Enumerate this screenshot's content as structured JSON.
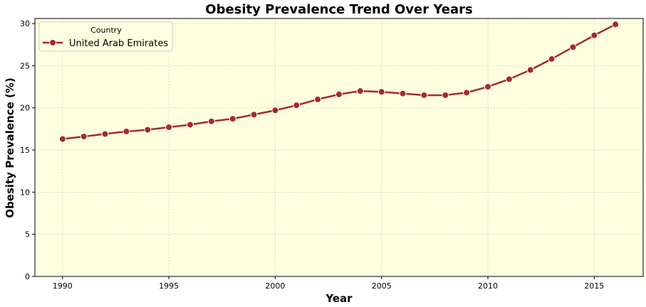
{
  "chart_data": {
    "type": "line",
    "title": "Obesity Prevalence Trend Over Years",
    "xlabel": "Year",
    "ylabel": "Obesity Prevalence (%)",
    "xlim": [
      1988.7,
      2017.3
    ],
    "ylim": [
      0,
      30.6
    ],
    "x_ticks": [
      1990,
      1995,
      2000,
      2005,
      2010,
      2015
    ],
    "y_ticks": [
      0,
      5,
      10,
      15,
      20,
      25,
      30
    ],
    "grid": true,
    "legend": {
      "title": "Country",
      "position": "top-left"
    },
    "colors": {
      "background": "#ffffe0",
      "line": "#a52a2a",
      "grid": "#cccccc"
    },
    "series": [
      {
        "name": "United Arab Emirates",
        "x": [
          1990,
          1991,
          1992,
          1993,
          1994,
          1995,
          1996,
          1997,
          1998,
          1999,
          2000,
          2001,
          2002,
          2003,
          2004,
          2005,
          2006,
          2007,
          2008,
          2009,
          2010,
          2011,
          2012,
          2013,
          2014,
          2015,
          2016
        ],
        "values": [
          16.3,
          16.6,
          16.9,
          17.2,
          17.4,
          17.7,
          18.0,
          18.4,
          18.7,
          19.2,
          19.7,
          20.3,
          21.0,
          21.6,
          22.0,
          21.9,
          21.7,
          21.5,
          21.5,
          21.8,
          22.5,
          23.4,
          24.5,
          25.8,
          27.2,
          28.6,
          29.9
        ]
      }
    ]
  }
}
